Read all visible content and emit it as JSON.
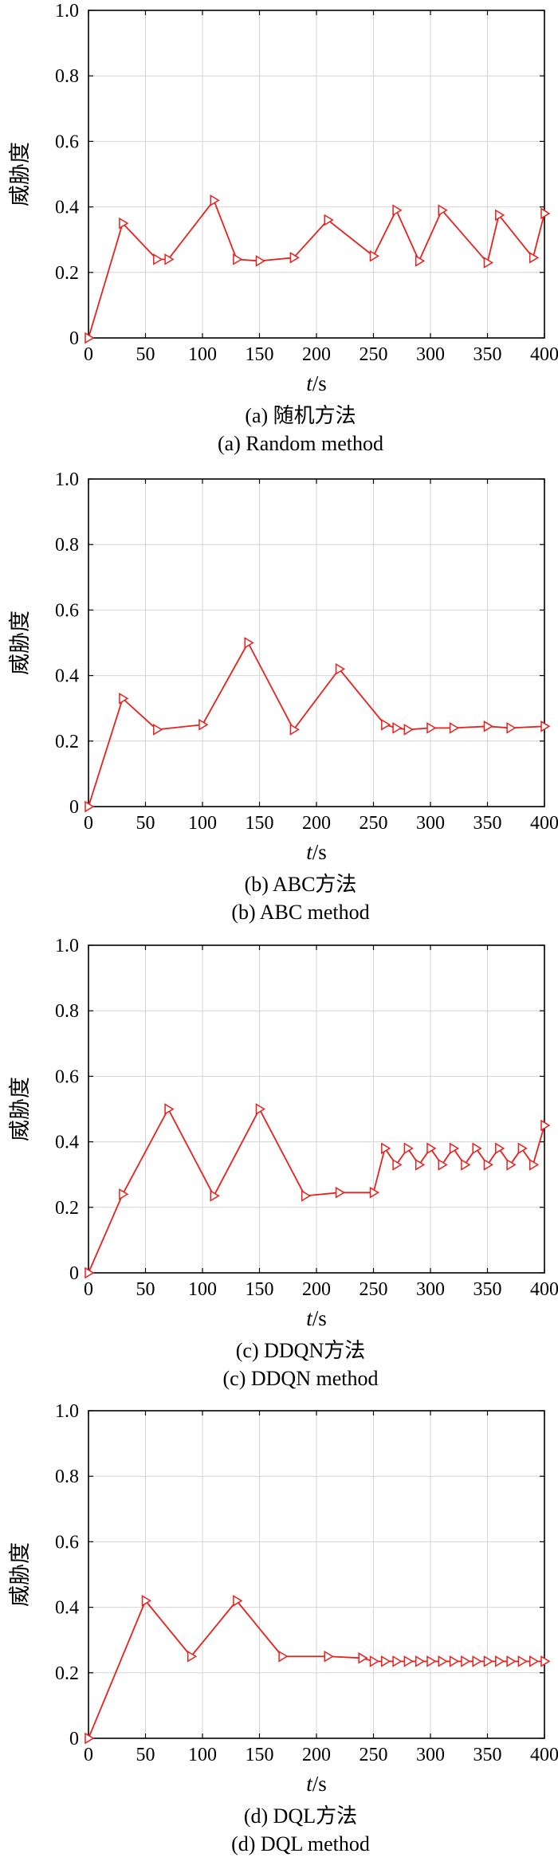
{
  "chart_data": [
    {
      "type": "line",
      "ylabel": "威胁度",
      "xlabel_var": "t",
      "xlabel_unit": "/s",
      "caption_cn": "(a) 随机方法",
      "caption_en": "(a) Random method",
      "xlim": [
        0,
        400
      ],
      "ylim": [
        0,
        1.0
      ],
      "xticks": [
        "0",
        "50",
        "100",
        "150",
        "200",
        "250",
        "300",
        "350",
        "400"
      ],
      "yticks": [
        "0",
        "0.2",
        "0.4",
        "0.6",
        "0.8",
        "1.0"
      ],
      "grid": true,
      "line_color": "#e8211d",
      "marker": "triangle-right",
      "series": [
        {
          "x": [
            0,
            30,
            60,
            70,
            110,
            130,
            150,
            180,
            210,
            250,
            270,
            290,
            310,
            350,
            360,
            390,
            400
          ],
          "y": [
            0,
            0.35,
            0.24,
            0.24,
            0.42,
            0.24,
            0.235,
            0.245,
            0.36,
            0.25,
            0.39,
            0.235,
            0.39,
            0.23,
            0.375,
            0.245,
            0.38
          ]
        }
      ]
    },
    {
      "type": "line",
      "ylabel": "威胁度",
      "xlabel_var": "t",
      "xlabel_unit": "/s",
      "caption_cn": "(b) ABC方法",
      "caption_en": "(b) ABC method",
      "xlim": [
        0,
        400
      ],
      "ylim": [
        0,
        1.0
      ],
      "xticks": [
        "0",
        "50",
        "100",
        "150",
        "200",
        "250",
        "300",
        "350",
        "400"
      ],
      "yticks": [
        "0",
        "0.2",
        "0.4",
        "0.6",
        "0.8",
        "1.0"
      ],
      "grid": true,
      "line_color": "#e8211d",
      "marker": "triangle-right",
      "series": [
        {
          "x": [
            0,
            30,
            60,
            100,
            140,
            180,
            220,
            260,
            270,
            280,
            300,
            320,
            350,
            370,
            400
          ],
          "y": [
            0,
            0.33,
            0.235,
            0.25,
            0.5,
            0.235,
            0.42,
            0.25,
            0.24,
            0.235,
            0.24,
            0.24,
            0.245,
            0.24,
            0.245
          ]
        }
      ]
    },
    {
      "type": "line",
      "ylabel": "威胁度",
      "xlabel_var": "t",
      "xlabel_unit": "/s",
      "caption_cn": "(c) DDQN方法",
      "caption_en": "(c) DDQN method",
      "xlim": [
        0,
        400
      ],
      "ylim": [
        0,
        1.0
      ],
      "xticks": [
        "0",
        "50",
        "100",
        "150",
        "200",
        "250",
        "300",
        "350",
        "400"
      ],
      "yticks": [
        "0",
        "0.2",
        "0.4",
        "0.6",
        "0.8",
        "1.0"
      ],
      "grid": true,
      "line_color": "#e8211d",
      "marker": "triangle-right",
      "series": [
        {
          "x": [
            0,
            30,
            70,
            110,
            150,
            190,
            220,
            250,
            260,
            270,
            280,
            290,
            300,
            310,
            320,
            330,
            340,
            350,
            360,
            370,
            380,
            390,
            400
          ],
          "y": [
            0,
            0.24,
            0.5,
            0.235,
            0.5,
            0.235,
            0.245,
            0.245,
            0.38,
            0.33,
            0.38,
            0.33,
            0.38,
            0.33,
            0.38,
            0.33,
            0.38,
            0.33,
            0.38,
            0.33,
            0.38,
            0.33,
            0.45
          ]
        }
      ]
    },
    {
      "type": "line",
      "ylabel": "威胁度",
      "xlabel_var": "t",
      "xlabel_unit": "/s",
      "caption_cn": "(d) DQL方法",
      "caption_en": "(d) DQL method",
      "xlim": [
        0,
        400
      ],
      "ylim": [
        0,
        1.0
      ],
      "xticks": [
        "0",
        "50",
        "100",
        "150",
        "200",
        "250",
        "300",
        "350",
        "400"
      ],
      "yticks": [
        "0",
        "0.2",
        "0.4",
        "0.6",
        "0.8",
        "1.0"
      ],
      "grid": true,
      "line_color": "#e8211d",
      "marker": "triangle-right",
      "series": [
        {
          "x": [
            0,
            50,
            90,
            130,
            170,
            210,
            240,
            250,
            260,
            270,
            280,
            290,
            300,
            310,
            320,
            330,
            340,
            350,
            360,
            370,
            380,
            390,
            400
          ],
          "y": [
            0,
            0.42,
            0.25,
            0.42,
            0.25,
            0.25,
            0.245,
            0.235,
            0.235,
            0.235,
            0.235,
            0.235,
            0.235,
            0.235,
            0.235,
            0.235,
            0.235,
            0.235,
            0.235,
            0.235,
            0.235,
            0.235,
            0.235
          ]
        }
      ]
    }
  ]
}
